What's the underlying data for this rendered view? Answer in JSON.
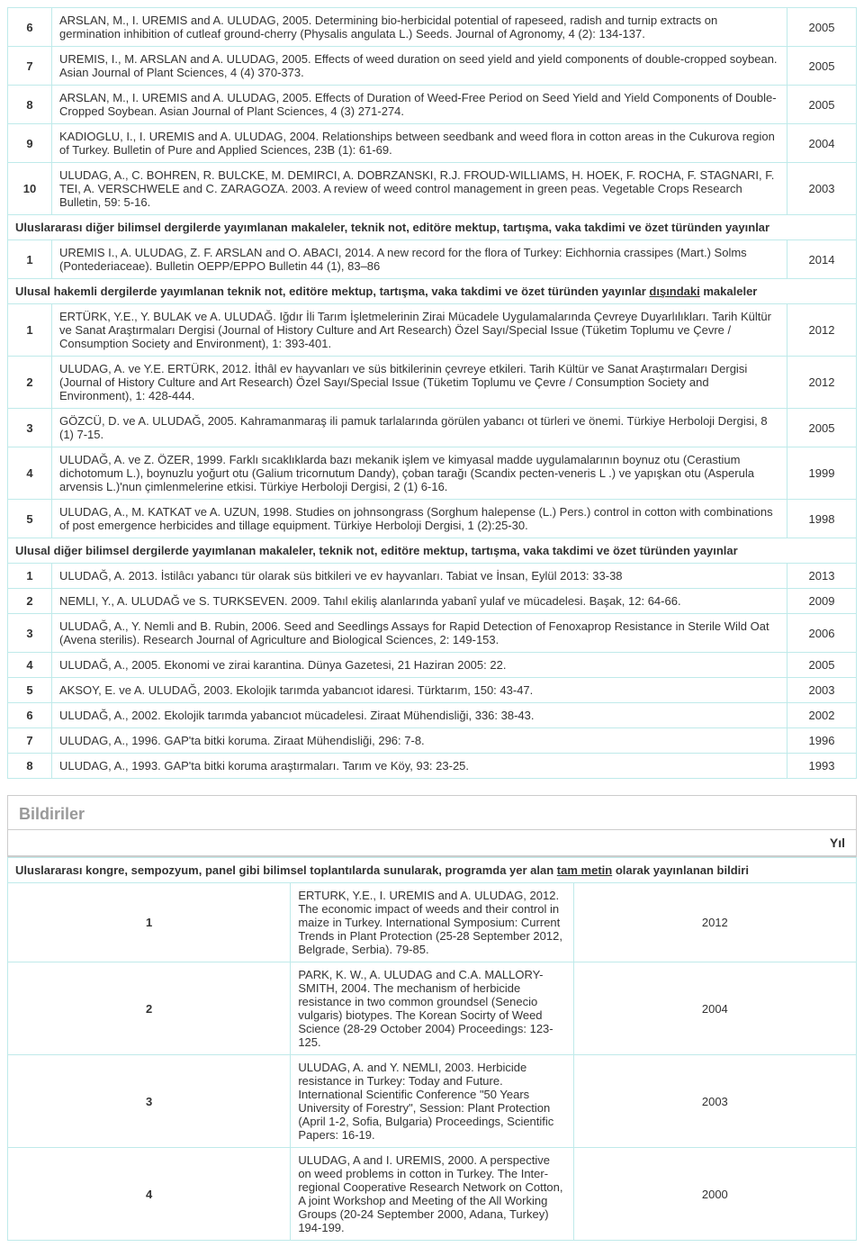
{
  "topRows": [
    {
      "n": "6",
      "text": "ARSLAN, M., I. UREMIS and A. ULUDAG, 2005. Determining bio-herbicidal potential of rapeseed, radish and turnip extracts on germination inhibition of cutleaf ground-cherry (Physalis angulata L.) Seeds. Journal of Agronomy, 4 (2): 134-137.",
      "year": "2005"
    },
    {
      "n": "7",
      "text": "UREMIS, I., M. ARSLAN and A. ULUDAG, 2005. Effects of weed duration on seed yield and yield components of double-cropped soybean. Asian Journal of Plant Sciences, 4 (4) 370-373.",
      "year": "2005"
    },
    {
      "n": "8",
      "text": "ARSLAN, M., I. UREMIS and A. ULUDAG, 2005. Effects of Duration of Weed-Free Period on Seed Yield and Yield Components of Double-Cropped Soybean. Asian Journal of Plant Sciences, 4 (3) 271-274.",
      "year": "2005"
    },
    {
      "n": "9",
      "text": "KADIOGLU, I., I. UREMIS and A. ULUDAG, 2004. Relationships between seedbank and weed flora in cotton areas in the Cukurova region of Turkey. Bulletin of Pure and Applied Sciences, 23B (1): 61-69.",
      "year": "2004"
    },
    {
      "n": "10",
      "text": "ULUDAG, A., C. BOHREN, R. BULCKE, M. DEMIRCI, A. DOBRZANSKI, R.J. FROUD-WILLIAMS, H. HOEK, F. ROCHA, F. STAGNARI, F. TEI, A. VERSCHWELE and C. ZARAGOZA. 2003. A review of weed control management in green peas. Vegetable Crops Research Bulletin, 59: 5-16.",
      "year": "2003"
    }
  ],
  "sec1_title": "Uluslararası diğer bilimsel dergilerde yayımlanan makaleler, teknik not, editöre mektup, tartışma, vaka takdimi ve özet türünden yayınlar",
  "sec1_rows": [
    {
      "n": "1",
      "text": "UREMIS I., A. ULUDAG, Z. F. ARSLAN and O. ABACI, 2014. A new record for the flora of Turkey: Eichhornia crassipes (Mart.) Solms (Pontederiaceae). Bulletin OEPP/EPPO Bulletin 44 (1), 83–86",
      "year": "2014"
    }
  ],
  "sec2_title_pre": "Ulusal hakemli dergilerde yayımlanan teknik not, editöre mektup, tartışma, vaka takdimi ve özet türünden yayınlar ",
  "sec2_title_u": "dışındaki",
  "sec2_title_post": " makaleler",
  "sec2_rows": [
    {
      "n": "1",
      "text": "ERTÜRK, Y.E., Y. BULAK ve A. ULUDAĞ. Iğdır İli Tarım İşletmelerinin Zirai Mücadele Uygulamalarında Çevreye Duyarlılıkları. Tarih Kültür ve Sanat Araştırmaları Dergisi (Journal of History Culture and Art Research) Özel Sayı/Special Issue (Tüketim Toplumu ve Çevre / Consumption Society and Environment), 1: 393-401.",
      "year": "2012"
    },
    {
      "n": "2",
      "text": "ULUDAG, A. ve Y.E. ERTÜRK, 2012. İthâl ev hayvanları ve süs bitkilerinin çevreye etkileri. Tarih Kültür ve Sanat Araştırmaları Dergisi (Journal of History Culture and Art Research) Özel Sayı/Special Issue (Tüketim Toplumu ve Çevre / Consumption Society and Environment), 1: 428-444.",
      "year": "2012"
    },
    {
      "n": "3",
      "text": "GÖZCÜ, D. ve A. ULUDAĞ, 2005. Kahramanmaraş ili pamuk tarlalarında görülen yabancı ot türleri ve önemi. Türkiye Herboloji Dergisi, 8 (1) 7-15.",
      "year": "2005"
    },
    {
      "n": "4",
      "text": "ULUDAĞ, A. ve Z. ÖZER, 1999. Farklı sıcaklıklarda bazı mekanik işlem ve kimyasal madde uygulamalarının boynuz otu (Cerastium dichotomum L.), boynuzlu yoğurt otu (Galium tricornutum Dandy), çoban tarağı (Scandix pecten-veneris L .) ve yapışkan otu (Asperula arvensis L.)'nun çimlenmelerine etkisi. Türkiye Herboloji Dergisi, 2 (1) 6-16.",
      "year": "1999"
    },
    {
      "n": "5",
      "text": "ULUDAG, A., M. KATKAT ve A. UZUN, 1998. Studies on johnsongrass (Sorghum halepense (L.) Pers.) control in cotton with combinations of post emergence herbicides and tillage equipment. Türkiye Herboloji Dergisi, 1 (2):25-30.",
      "year": "1998"
    }
  ],
  "sec3_title": "Ulusal diğer bilimsel dergilerde yayımlanan makaleler, teknik not, editöre mektup, tartışma, vaka takdimi ve özet türünden yayınlar",
  "sec3_rows": [
    {
      "n": "1",
      "text": "ULUDAĞ, A. 2013. İstilâcı yabancı tür olarak süs bitkileri ve ev hayvanları. Tabiat ve İnsan, Eylül 2013: 33-38",
      "year": "2013"
    },
    {
      "n": "2",
      "text": "NEMLI, Y., A. ULUDAĞ ve S. TURKSEVEN. 2009. Tahıl ekiliş alanlarında yabanî yulaf ve mücadelesi. Başak, 12: 64-66.",
      "year": "2009"
    },
    {
      "n": "3",
      "text": "ULUDAĞ, A., Y. Nemli and B. Rubin, 2006. Seed and Seedlings Assays for Rapid Detection of Fenoxaprop Resistance in Sterile Wild Oat (Avena sterilis). Research Journal of Agriculture and Biological Sciences, 2: 149-153.",
      "year": "2006"
    },
    {
      "n": "4",
      "text": "ULUDAĞ, A., 2005. Ekonomi ve zirai karantina. Dünya Gazetesi, 21 Haziran 2005: 22.",
      "year": "2005"
    },
    {
      "n": "5",
      "text": "AKSOY, E. ve A. ULUDAĞ, 2003. Ekolojik tarımda yabancıot idaresi. Türktarım, 150: 43-47.",
      "year": "2003"
    },
    {
      "n": "6",
      "text": "ULUDAĞ, A., 2002. Ekolojik tarımda yabancıot mücadelesi. Ziraat Mühendisliği, 336: 38-43.",
      "year": "2002"
    },
    {
      "n": "7",
      "text": "ULUDAG, A., 1996. GAP'ta bitki koruma. Ziraat Mühendisliği, 296: 7-8.",
      "year": "1996"
    },
    {
      "n": "8",
      "text": "ULUDAG, A., 1993. GAP'ta bitki koruma araştırmaları. Tarım ve Köy, 93: 23-25.",
      "year": "1993"
    }
  ],
  "panel_heading": "Bildiriler",
  "panel_yil": "Yıl",
  "sec4_title_pre": "Uluslararası kongre, sempozyum, panel gibi bilimsel toplantılarda sunularak, programda yer alan ",
  "sec4_title_u": "tam metin",
  "sec4_title_post": " olarak yayınlanan bildiri",
  "sec4_rows": [
    {
      "n": "1",
      "text": "ERTURK, Y.E., I. UREMIS and A. ULUDAG, 2012. The economic impact of weeds and their control in maize in Turkey. International Symposium: Current Trends in Plant Protection (25-28 September 2012, Belgrade, Serbia). 79-85.",
      "year": "2012"
    },
    {
      "n": "2",
      "text": "PARK, K. W., A. ULUDAG and C.A. MALLORY-SMITH, 2004. The mechanism of herbicide resistance in two common groundsel (Senecio vulgaris) biotypes. The Korean Socirty of Weed Science (28-29 October 2004) Proceedings: 123-125.",
      "year": "2004"
    },
    {
      "n": "3",
      "text": "ULUDAG, A. and Y. NEMLI, 2003. Herbicide resistance in Turkey: Today and Future. International Scientific Conference \"50 Years University of Forestry\", Session: Plant Protection (April 1-2, Sofia, Bulgaria) Proceedings, Scientific Papers: 16-19.",
      "year": "2003"
    },
    {
      "n": "4",
      "text": "ULUDAG, A and I. UREMIS, 2000. A perspective on weed problems in cotton in Turkey. The Inter-regional Cooperative Research Network on Cotton, A joint Workshop and Meeting of the All Working Groups (20-24 September 2000, Adana, Turkey) 194-199.",
      "year": "2000"
    }
  ]
}
